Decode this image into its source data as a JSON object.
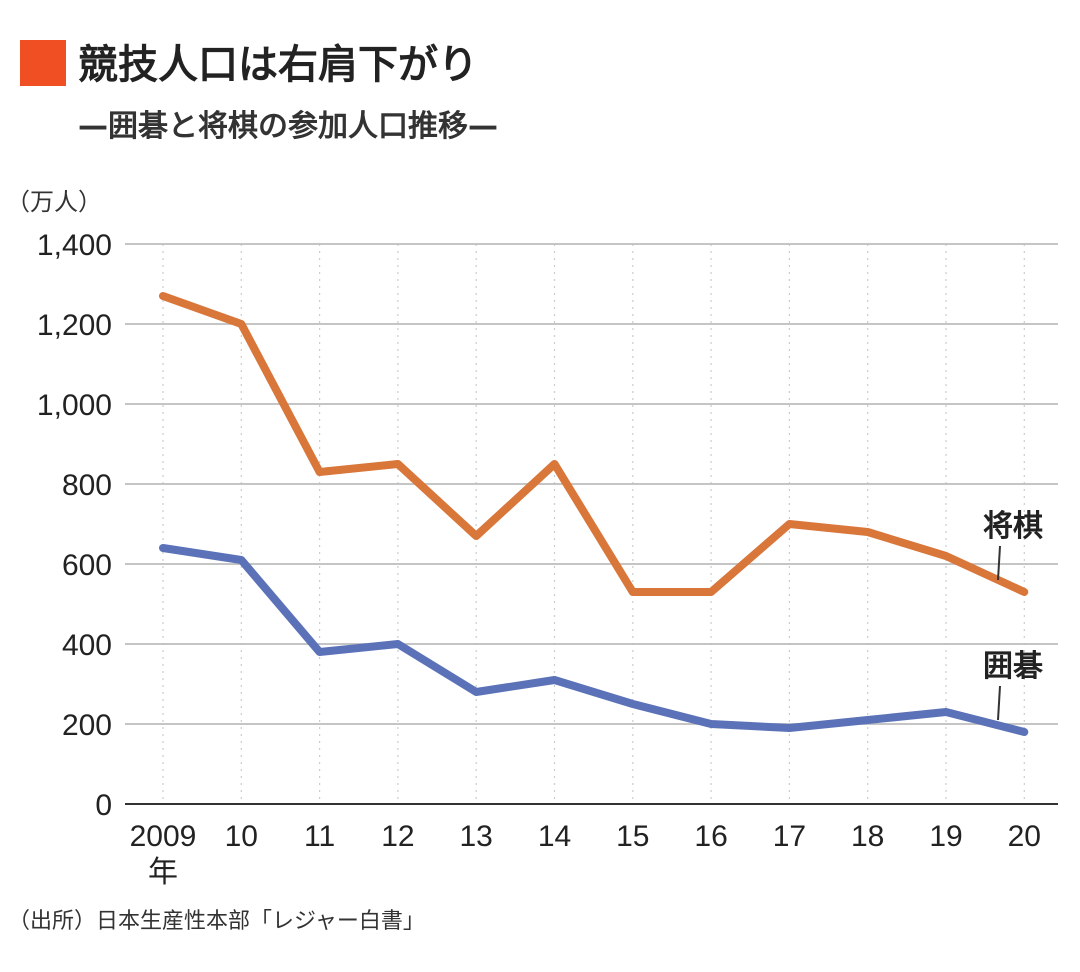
{
  "header": {
    "title": "競技人口は右肩下がり",
    "subtitle": "—囲碁と将棋の参加人口推移—",
    "accent_color": "#f04e23"
  },
  "source": "（出所）日本生産性本部「レジャー白書」",
  "chart_data": {
    "type": "line",
    "unit_label": "（万人）",
    "x": [
      "2009",
      "10",
      "11",
      "12",
      "13",
      "14",
      "15",
      "16",
      "17",
      "18",
      "19",
      "20"
    ],
    "x_first_suffix": "年",
    "ylim": [
      0,
      1400
    ],
    "y_ticks": [
      "0",
      "200",
      "400",
      "600",
      "800",
      "1,000",
      "1,200",
      "1,400"
    ],
    "grid": true,
    "series": [
      {
        "name": "将棋",
        "color": "#d9763a",
        "values": [
          1270,
          1200,
          830,
          850,
          670,
          850,
          530,
          530,
          700,
          680,
          620,
          530
        ]
      },
      {
        "name": "囲碁",
        "color": "#5b72b8",
        "values": [
          640,
          610,
          380,
          400,
          280,
          310,
          250,
          200,
          190,
          210,
          230,
          180
        ]
      }
    ]
  }
}
